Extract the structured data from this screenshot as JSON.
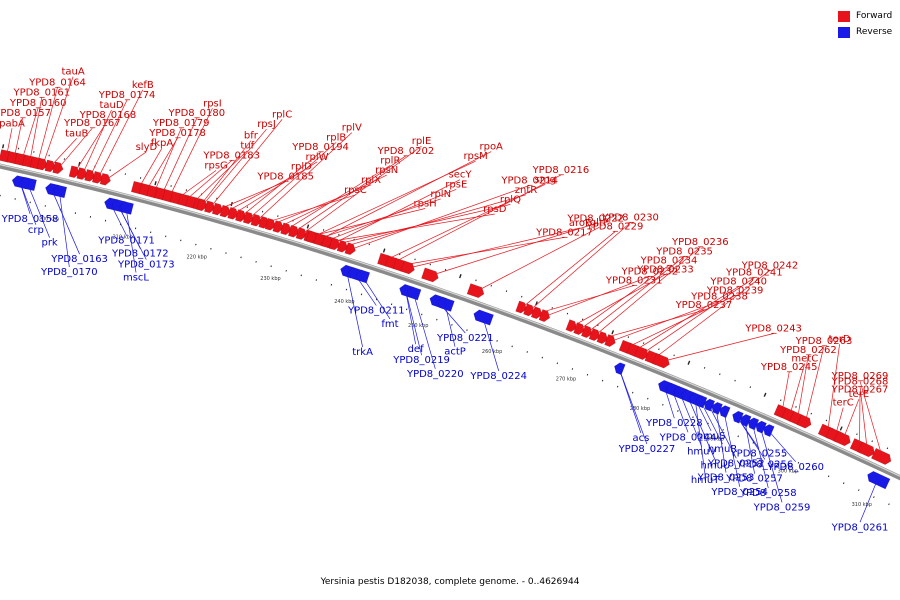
{
  "legend": {
    "forward_label": "Forward",
    "reverse_label": "Reverse",
    "forward_color": "#e8141c",
    "reverse_color": "#1a1ae6"
  },
  "caption": "Yersinia pestis D182038, complete genome. - 0..4626944",
  "ticks": [
    "200 kbp",
    "210 kbp",
    "220 kbp",
    "230 kbp",
    "240 kbp",
    "250 kbp",
    "260 kbp",
    "270 kbp",
    "280 kbp",
    "290 kbp",
    "300 kbp",
    "310 kbp"
  ],
  "forward_labels": [
    "pabA",
    "YPD8_0157",
    "YPD8_0160",
    "YPD8_0161",
    "YPD8_0164",
    "tauA",
    "tauB",
    "YPD8_0167",
    "YPD8_0168",
    "tauD",
    "YPD8_0174",
    "kefB",
    "slyD",
    "fkpA",
    "YPD8_0178",
    "YPD8_0179",
    "YPD8_0180",
    "rpsI",
    "rpsG",
    "YPD8_0183",
    "tuf",
    "bfr",
    "rpsJ",
    "rplC",
    "YPD8_0185",
    "rplD",
    "rplW",
    "YPD8_0194",
    "rplB",
    "rplV",
    "rpsC",
    "rplX",
    "rpsN",
    "rplR",
    "YPD8_0202",
    "rplE",
    "rpsH",
    "rplN",
    "rpsE",
    "secY",
    "rpsM",
    "rpoA",
    "rpsD",
    "rplQ",
    "zntR",
    "YPD8_0214",
    "smg",
    "YPD8_0216",
    "YPD8_0217",
    "aroE",
    "YPD8_0222",
    "gltP",
    "YPD8_0229",
    "YPD8_0230",
    "YPD8_0231",
    "YPD8_0232",
    "YPD8_0233",
    "YPD8_0234",
    "YPD8_0235",
    "YPD8_0236",
    "YPD8_0237",
    "YPD8_0238",
    "YPD8_0239",
    "YPD8_0240",
    "YPD8_0241",
    "YPD8_0242",
    "YPD8_0243",
    "YPD8_0245",
    "metC",
    "YPD8_0262",
    "YPD8_0263",
    "terD",
    "terC",
    "terE",
    "YPD8_0267",
    "YPD8_0268",
    "YPD8_0269"
  ],
  "reverse_labels": [
    "YPD8_0158",
    "crp",
    "prk",
    "YPD8_0163",
    "YPD8_0170",
    "YPD8_0171",
    "YPD8_0172",
    "YPD8_0173",
    "mscL",
    "trkA",
    "YPD8_0211",
    "fmt",
    "def",
    "YPD8_0219",
    "YPD8_0220",
    "YPD8_0221",
    "actP",
    "YPD8_0224",
    "acs",
    "YPD8_0227",
    "YPD8_0228",
    "YPD8_0244",
    "hmuV",
    "hmuU",
    "hmuT",
    "hmuS",
    "hmuR",
    "YPD8_0252",
    "YPD8_0253",
    "YPD8_0254",
    "YPD8_0255",
    "YPD8_0256",
    "YPD8_0257",
    "YPD8_0258",
    "YPD8_0259",
    "YPD8_0260",
    "YPD8_0261"
  ]
}
